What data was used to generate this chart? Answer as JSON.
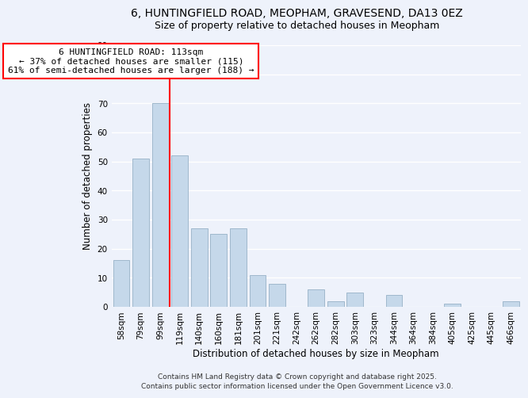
{
  "title_line1": "6, HUNTINGFIELD ROAD, MEOPHAM, GRAVESEND, DA13 0EZ",
  "title_line2": "Size of property relative to detached houses in Meopham",
  "xlabel": "Distribution of detached houses by size in Meopham",
  "ylabel": "Number of detached properties",
  "bar_labels": [
    "58sqm",
    "79sqm",
    "99sqm",
    "119sqm",
    "140sqm",
    "160sqm",
    "181sqm",
    "201sqm",
    "221sqm",
    "242sqm",
    "262sqm",
    "282sqm",
    "303sqm",
    "323sqm",
    "344sqm",
    "364sqm",
    "384sqm",
    "405sqm",
    "425sqm",
    "445sqm",
    "466sqm"
  ],
  "bar_values": [
    16,
    51,
    70,
    52,
    27,
    25,
    27,
    11,
    8,
    0,
    6,
    2,
    5,
    0,
    4,
    0,
    0,
    1,
    0,
    0,
    2
  ],
  "bar_color": "#c5d8ea",
  "bar_edge_color": "#a0b8cc",
  "vline_color": "red",
  "annotation_title": "6 HUNTINGFIELD ROAD: 113sqm",
  "annotation_line2": "← 37% of detached houses are smaller (115)",
  "annotation_line3": "61% of semi-detached houses are larger (188) →",
  "annotation_box_color": "white",
  "annotation_box_edge_color": "red",
  "ylim": [
    0,
    90
  ],
  "yticks": [
    0,
    10,
    20,
    30,
    40,
    50,
    60,
    70,
    80,
    90
  ],
  "footer_line1": "Contains HM Land Registry data © Crown copyright and database right 2025.",
  "footer_line2": "Contains public sector information licensed under the Open Government Licence v3.0.",
  "background_color": "#eef2fb",
  "grid_color": "white",
  "title_fontsize": 10,
  "subtitle_fontsize": 9,
  "axis_label_fontsize": 8.5,
  "tick_fontsize": 7.5,
  "annotation_fontsize": 8,
  "footer_fontsize": 6.5
}
